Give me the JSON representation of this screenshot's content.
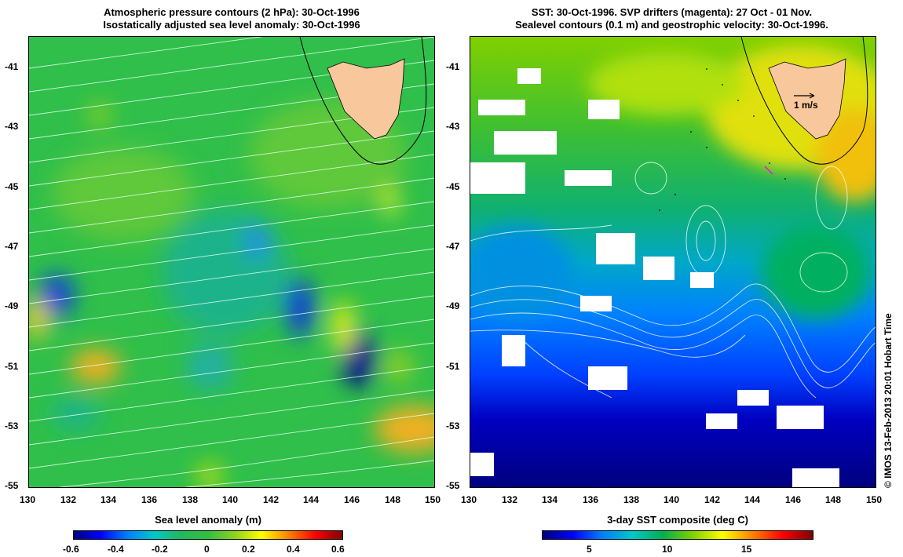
{
  "left_panel": {
    "title_line1": "Atmospheric pressure contours (2 hPa): 30-Oct-1996",
    "title_line2": "Isostatically adjusted sea level anomaly: 30-Oct-1996",
    "colorbar_title": "Sea level anomaly (m)",
    "colorbar_ticks": [
      "-0.6",
      "-0.4",
      "-0.2",
      "0",
      "0.2",
      "0.4",
      "0.6"
    ],
    "y_ticks": [
      "-41",
      "-43",
      "-45",
      "-47",
      "-49",
      "-51",
      "-53",
      "-55"
    ],
    "x_ticks": [
      "130",
      "132",
      "134",
      "136",
      "138",
      "140",
      "142",
      "144",
      "146",
      "148",
      "150"
    ]
  },
  "right_panel": {
    "title_line1": "SST: 30-Oct-1996. SVP drifters (magenta): 27 Oct - 01 Nov.",
    "title_line2": "Sealevel contours (0.1 m) and geostrophic velocity: 30-Oct-1996.",
    "vector_label": "1 m/s",
    "colorbar_title": "3-day SST composite (deg C)",
    "colorbar_ticks": [
      "5",
      "10",
      "15"
    ],
    "y_ticks": [
      "-41",
      "-43",
      "-45",
      "-47",
      "-49",
      "-51",
      "-53",
      "-55"
    ],
    "x_ticks": [
      "130",
      "132",
      "134",
      "136",
      "138",
      "140",
      "142",
      "144",
      "146",
      "148",
      "150"
    ]
  },
  "credit": "© IMOS 13-Feb-2013 20:01 Hobart Time",
  "colors": {
    "land": "#f9c79c",
    "sla_scale": [
      "#00007f",
      "#0000ff",
      "#0080ff",
      "#00c8c8",
      "#22b85a",
      "#30c040",
      "#90d020",
      "#ffff00",
      "#ff8000",
      "#ff0000",
      "#7f0000"
    ],
    "sst_scale": [
      "#00007f",
      "#0000ff",
      "#0080ff",
      "#00c8c8",
      "#00b050",
      "#80d000",
      "#ffff00",
      "#ff8000",
      "#ff0000",
      "#7f0000"
    ]
  }
}
